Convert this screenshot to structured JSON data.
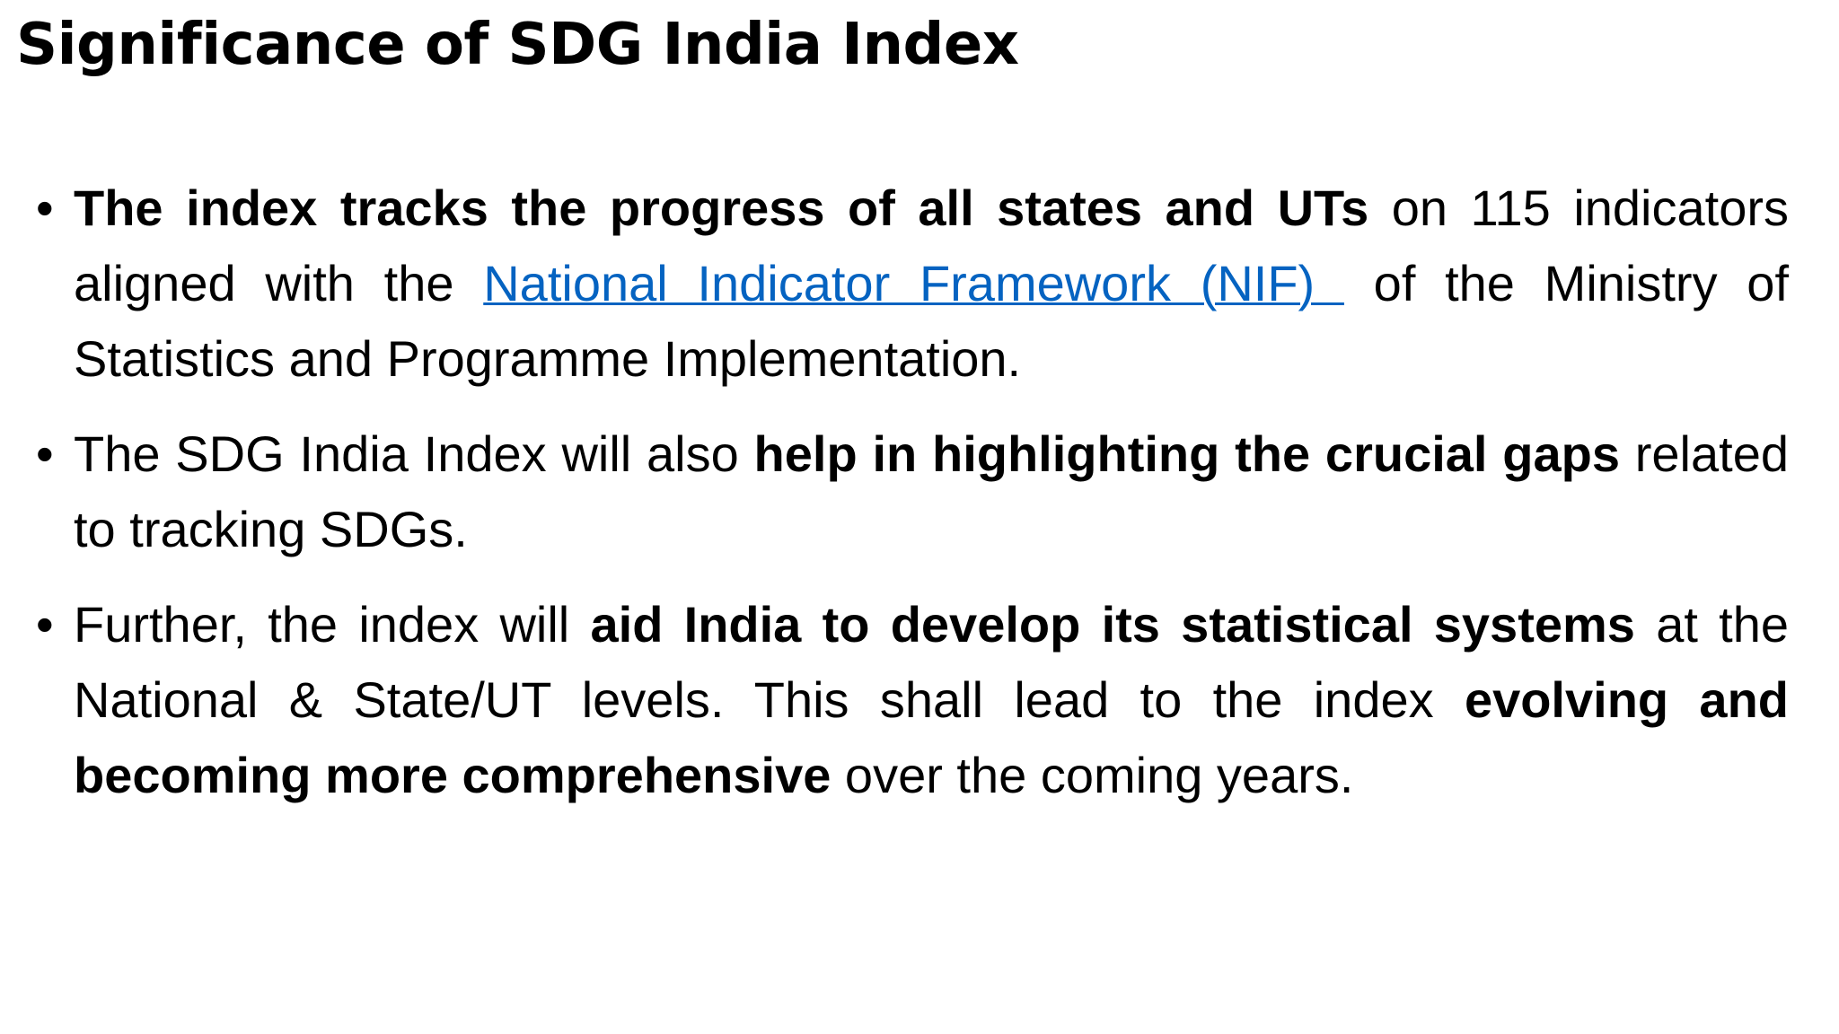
{
  "title": "Significance of SDG India Index",
  "bullets": [
    {
      "segments": [
        {
          "text": "The index tracks the progress of all states and UTs",
          "style": "bold"
        },
        {
          "text": " on 115 indicators aligned with the ",
          "style": "normal"
        },
        {
          "text": "National Indicator Framework (NIF) ",
          "style": "link"
        },
        {
          "text": " of the Ministry of Statistics and Programme Implementation.",
          "style": "normal"
        }
      ]
    },
    {
      "segments": [
        {
          "text": "The SDG India Index will also ",
          "style": "normal"
        },
        {
          "text": "help in highlighting the crucial gaps",
          "style": "bold"
        },
        {
          "text": " related to tracking SDGs.",
          "style": "normal"
        }
      ]
    },
    {
      "segments": [
        {
          "text": "Further, the index will ",
          "style": "normal"
        },
        {
          "text": "aid India to develop its statistical systems",
          "style": "bold"
        },
        {
          "text": " at the National & State/UT levels. This shall lead to the index ",
          "style": "normal"
        },
        {
          "text": "evolving and becoming more comprehensive",
          "style": "bold"
        },
        {
          "text": " over the coming years.",
          "style": "normal"
        }
      ]
    }
  ]
}
